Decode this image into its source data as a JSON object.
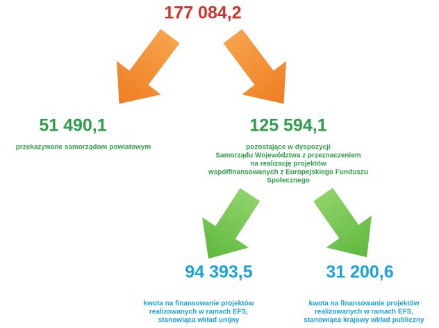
{
  "root": {
    "value": "177 084,2"
  },
  "nodes": [
    {
      "value": "51 490,1",
      "description": [
        "przekazywane samorządom powiatowym"
      ]
    },
    {
      "value": "125 594,1",
      "description": [
        "pozostające w dyspozycji",
        "Samorządu Województwa z przeznaczeniem",
        "na realizację projektów",
        "współfinansowanych z Europejskiego Funduszu",
        "Społecznego"
      ]
    },
    {
      "value": "94 393,5",
      "description": [
        "kwota na finansowanie projektów",
        "realizowanych w ramach EFS,",
        "stanowiąca wkład unijny"
      ]
    },
    {
      "value": "31 200,6",
      "description": [
        "kwota na finansowanie projektów",
        "realizowanych w ramach EFS,",
        "stanowiąca krajowy wkład publiczny"
      ]
    }
  ]
}
